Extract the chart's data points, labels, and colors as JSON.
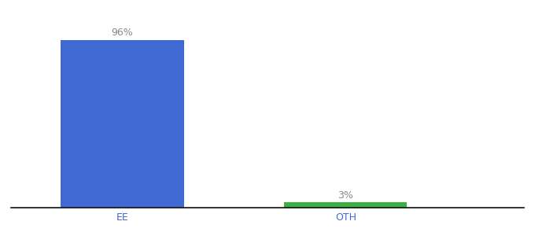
{
  "categories": [
    "EE",
    "OTH"
  ],
  "values": [
    96,
    3
  ],
  "bar_colors": [
    "#4169d4",
    "#3cb043"
  ],
  "label_texts": [
    "96%",
    "3%"
  ],
  "ylim": [
    0,
    108
  ],
  "background_color": "#ffffff",
  "bar_width": 0.55,
  "x_positions": [
    1,
    2
  ],
  "xlim": [
    0.5,
    2.8
  ],
  "xlabel_fontsize": 9,
  "label_fontsize": 9,
  "label_color": "#888888",
  "tick_color": "#4169d4"
}
